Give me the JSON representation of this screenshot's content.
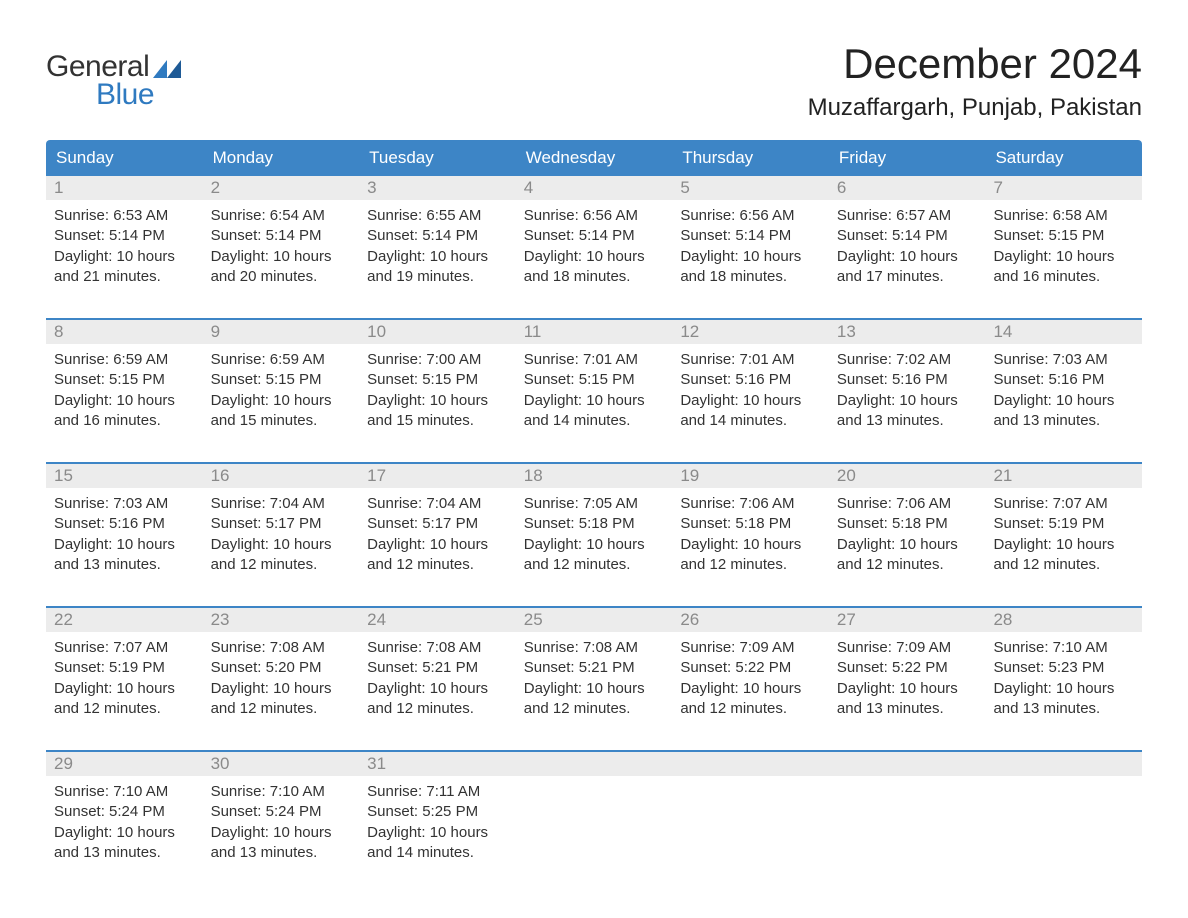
{
  "logo": {
    "text1": "General",
    "text2": "Blue",
    "flag_color": "#2f7ac0"
  },
  "title": "December 2024",
  "location": "Muzaffargarh, Punjab, Pakistan",
  "colors": {
    "header_bg": "#3d85c6",
    "header_text": "#ffffff",
    "week_border": "#3d85c6",
    "daynum_bg": "#ececec",
    "daynum_text": "#8a8a8a",
    "body_text": "#333333",
    "logo_blue": "#2f7ac0"
  },
  "day_names": [
    "Sunday",
    "Monday",
    "Tuesday",
    "Wednesday",
    "Thursday",
    "Friday",
    "Saturday"
  ],
  "labels": {
    "sunrise": "Sunrise:",
    "sunset": "Sunset:",
    "daylight": "Daylight:"
  },
  "weeks": [
    [
      {
        "n": "1",
        "sunrise": "6:53 AM",
        "sunset": "5:14 PM",
        "daylight": "10 hours and 21 minutes."
      },
      {
        "n": "2",
        "sunrise": "6:54 AM",
        "sunset": "5:14 PM",
        "daylight": "10 hours and 20 minutes."
      },
      {
        "n": "3",
        "sunrise": "6:55 AM",
        "sunset": "5:14 PM",
        "daylight": "10 hours and 19 minutes."
      },
      {
        "n": "4",
        "sunrise": "6:56 AM",
        "sunset": "5:14 PM",
        "daylight": "10 hours and 18 minutes."
      },
      {
        "n": "5",
        "sunrise": "6:56 AM",
        "sunset": "5:14 PM",
        "daylight": "10 hours and 18 minutes."
      },
      {
        "n": "6",
        "sunrise": "6:57 AM",
        "sunset": "5:14 PM",
        "daylight": "10 hours and 17 minutes."
      },
      {
        "n": "7",
        "sunrise": "6:58 AM",
        "sunset": "5:15 PM",
        "daylight": "10 hours and 16 minutes."
      }
    ],
    [
      {
        "n": "8",
        "sunrise": "6:59 AM",
        "sunset": "5:15 PM",
        "daylight": "10 hours and 16 minutes."
      },
      {
        "n": "9",
        "sunrise": "6:59 AM",
        "sunset": "5:15 PM",
        "daylight": "10 hours and 15 minutes."
      },
      {
        "n": "10",
        "sunrise": "7:00 AM",
        "sunset": "5:15 PM",
        "daylight": "10 hours and 15 minutes."
      },
      {
        "n": "11",
        "sunrise": "7:01 AM",
        "sunset": "5:15 PM",
        "daylight": "10 hours and 14 minutes."
      },
      {
        "n": "12",
        "sunrise": "7:01 AM",
        "sunset": "5:16 PM",
        "daylight": "10 hours and 14 minutes."
      },
      {
        "n": "13",
        "sunrise": "7:02 AM",
        "sunset": "5:16 PM",
        "daylight": "10 hours and 13 minutes."
      },
      {
        "n": "14",
        "sunrise": "7:03 AM",
        "sunset": "5:16 PM",
        "daylight": "10 hours and 13 minutes."
      }
    ],
    [
      {
        "n": "15",
        "sunrise": "7:03 AM",
        "sunset": "5:16 PM",
        "daylight": "10 hours and 13 minutes."
      },
      {
        "n": "16",
        "sunrise": "7:04 AM",
        "sunset": "5:17 PM",
        "daylight": "10 hours and 12 minutes."
      },
      {
        "n": "17",
        "sunrise": "7:04 AM",
        "sunset": "5:17 PM",
        "daylight": "10 hours and 12 minutes."
      },
      {
        "n": "18",
        "sunrise": "7:05 AM",
        "sunset": "5:18 PM",
        "daylight": "10 hours and 12 minutes."
      },
      {
        "n": "19",
        "sunrise": "7:06 AM",
        "sunset": "5:18 PM",
        "daylight": "10 hours and 12 minutes."
      },
      {
        "n": "20",
        "sunrise": "7:06 AM",
        "sunset": "5:18 PM",
        "daylight": "10 hours and 12 minutes."
      },
      {
        "n": "21",
        "sunrise": "7:07 AM",
        "sunset": "5:19 PM",
        "daylight": "10 hours and 12 minutes."
      }
    ],
    [
      {
        "n": "22",
        "sunrise": "7:07 AM",
        "sunset": "5:19 PM",
        "daylight": "10 hours and 12 minutes."
      },
      {
        "n": "23",
        "sunrise": "7:08 AM",
        "sunset": "5:20 PM",
        "daylight": "10 hours and 12 minutes."
      },
      {
        "n": "24",
        "sunrise": "7:08 AM",
        "sunset": "5:21 PM",
        "daylight": "10 hours and 12 minutes."
      },
      {
        "n": "25",
        "sunrise": "7:08 AM",
        "sunset": "5:21 PM",
        "daylight": "10 hours and 12 minutes."
      },
      {
        "n": "26",
        "sunrise": "7:09 AM",
        "sunset": "5:22 PM",
        "daylight": "10 hours and 12 minutes."
      },
      {
        "n": "27",
        "sunrise": "7:09 AM",
        "sunset": "5:22 PM",
        "daylight": "10 hours and 13 minutes."
      },
      {
        "n": "28",
        "sunrise": "7:10 AM",
        "sunset": "5:23 PM",
        "daylight": "10 hours and 13 minutes."
      }
    ],
    [
      {
        "n": "29",
        "sunrise": "7:10 AM",
        "sunset": "5:24 PM",
        "daylight": "10 hours and 13 minutes."
      },
      {
        "n": "30",
        "sunrise": "7:10 AM",
        "sunset": "5:24 PM",
        "daylight": "10 hours and 13 minutes."
      },
      {
        "n": "31",
        "sunrise": "7:11 AM",
        "sunset": "5:25 PM",
        "daylight": "10 hours and 14 minutes."
      },
      null,
      null,
      null,
      null
    ]
  ]
}
